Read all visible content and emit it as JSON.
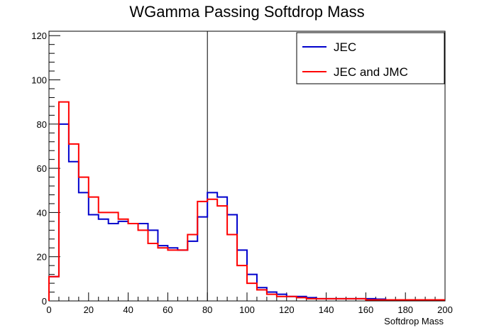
{
  "chart_data": {
    "type": "line",
    "title": "WGamma Passing Softdrop Mass",
    "xlabel": "Softdrop Mass",
    "ylabel": "",
    "xlim": [
      0,
      200
    ],
    "ylim": [
      0,
      122
    ],
    "x_ticks": [
      0,
      20,
      40,
      60,
      80,
      100,
      120,
      140,
      160,
      180,
      200
    ],
    "y_ticks": [
      0,
      20,
      40,
      60,
      80,
      100,
      120
    ],
    "bin_width": 5,
    "vertical_line_x": 80,
    "legend_position": "top-right",
    "grid": false,
    "series": [
      {
        "name": "JEC",
        "color": "#0000cc",
        "values": [
          11,
          80,
          63,
          49,
          39,
          37,
          35,
          36,
          35,
          35,
          32,
          25,
          24,
          23,
          27,
          38,
          49,
          47,
          39,
          23,
          12,
          6,
          4,
          3,
          2,
          2,
          1.5,
          1,
          1,
          1,
          1,
          1,
          1,
          0.8,
          0.5,
          0.5,
          0.5,
          0.5,
          0.5,
          0.5
        ]
      },
      {
        "name": "JEC and JMC",
        "color": "#ff0000",
        "values": [
          11,
          90,
          71,
          56,
          47,
          40,
          40,
          37,
          35,
          32,
          26,
          24,
          23,
          23,
          30,
          45,
          46,
          43,
          30,
          16,
          8,
          5,
          3,
          2,
          2,
          1.5,
          1,
          1,
          1,
          1,
          1,
          1,
          0.5,
          0.5,
          0.5,
          0.5,
          0.5,
          0.5,
          0.5,
          0.5
        ]
      }
    ]
  }
}
